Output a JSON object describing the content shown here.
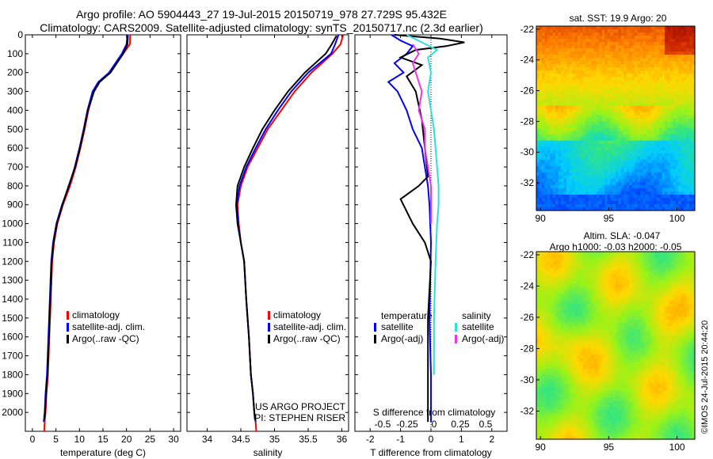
{
  "title": {
    "line1": "Argo profile: AO 5904443_27 19-Jul-2015 20150719_978 27.729S 95.432E",
    "line2": "Climatology: CARS2009. Satellite-adjusted climatology: synTS_20150717.nc (2.3d earlier)"
  },
  "colors": {
    "climatology": "#ff0000",
    "satellite": "#0000ff",
    "argo": "#000000",
    "sal_sat": "#33dddd",
    "sal_argo": "#ee33ee"
  },
  "chart_data": [
    {
      "type": "line",
      "xlabel": "temperature (deg C)",
      "ylabel": "",
      "xlim": [
        -1.5,
        31.5
      ],
      "ylim": [
        2100,
        0
      ],
      "xticks": [
        "0",
        "5",
        "10",
        "15",
        "20",
        "25",
        "30"
      ],
      "yticks": [
        "0",
        "100",
        "200",
        "300",
        "400",
        "500",
        "600",
        "700",
        "800",
        "900",
        "1000",
        "1100",
        "1200",
        "1300",
        "1400",
        "1500",
        "1600",
        "1700",
        "1800",
        "1900",
        "2000"
      ],
      "legend": [
        "climatology",
        "satellite-adj. clim.",
        "Argo(..raw -QC)"
      ],
      "series": [
        {
          "name": "climatology",
          "color": "#ff0000",
          "x": [
            20.8,
            20.7,
            19.3,
            16.5,
            14.2,
            13.0,
            11.9,
            11.1,
            10.2,
            9.2,
            8.0,
            6.5,
            5.3,
            4.6,
            4.2,
            3.9,
            3.6,
            3.3,
            3.0,
            2.8,
            2.6,
            2.5
          ],
          "y": [
            0,
            50,
            100,
            200,
            250,
            300,
            400,
            500,
            600,
            700,
            800,
            900,
            1000,
            1100,
            1200,
            1400,
            1600,
            1800,
            1900,
            2000,
            2050,
            2100
          ]
        },
        {
          "name": "satellite-adj. clim.",
          "color": "#0000ff",
          "x": [
            20.2,
            20.0,
            19.0,
            16.3,
            14.0,
            12.8,
            11.7,
            10.9,
            10.0,
            9.0,
            7.8,
            6.3,
            5.1,
            4.4,
            4.0,
            3.7,
            3.4,
            3.1,
            2.8,
            2.6,
            2.4
          ],
          "y": [
            0,
            50,
            100,
            200,
            250,
            300,
            400,
            500,
            600,
            700,
            800,
            900,
            1000,
            1100,
            1200,
            1400,
            1600,
            1800,
            1900,
            2000,
            2050
          ]
        },
        {
          "name": "Argo(..raw -QC)",
          "color": "#000000",
          "x": [
            20.3,
            20.2,
            19.3,
            16.6,
            14.3,
            13.1,
            11.8,
            11.0,
            10.1,
            9.1,
            7.7,
            6.4,
            5.2,
            4.5,
            4.1,
            3.8,
            3.5,
            3.2,
            2.9,
            2.7,
            2.5
          ],
          "y": [
            5,
            50,
            100,
            200,
            250,
            300,
            400,
            500,
            600,
            700,
            800,
            900,
            1000,
            1100,
            1200,
            1400,
            1600,
            1800,
            1900,
            2000,
            2040
          ]
        }
      ]
    },
    {
      "type": "line",
      "xlabel": "salinity",
      "xlim": [
        33.7,
        36.1
      ],
      "ylim": [
        2100,
        0
      ],
      "xticks": [
        "34",
        "34.5",
        "35",
        "35.5",
        "36"
      ],
      "legend": [
        "climatology",
        "satellite-adj. clim.",
        "Argo(..raw -QC)"
      ],
      "annotation": [
        "US ARGO PROJECT",
        "PI: STEPHEN RISER"
      ],
      "series": [
        {
          "name": "climatology",
          "color": "#ff0000",
          "x": [
            36.02,
            35.98,
            35.86,
            35.55,
            35.3,
            35.1,
            34.9,
            34.75,
            34.6,
            34.5,
            34.45,
            34.47,
            34.5,
            34.55,
            34.58,
            34.62,
            34.65,
            34.68,
            34.7,
            34.72,
            34.73
          ],
          "y": [
            0,
            50,
            100,
            200,
            300,
            400,
            500,
            600,
            700,
            800,
            900,
            1000,
            1100,
            1200,
            1400,
            1600,
            1800,
            1900,
            2000,
            2050,
            2100
          ]
        },
        {
          "name": "satellite-adj. clim.",
          "color": "#0000ff",
          "x": [
            35.95,
            35.9,
            35.84,
            35.5,
            35.25,
            35.05,
            34.87,
            34.72,
            34.58,
            34.48,
            34.44,
            34.46,
            34.5,
            34.55,
            34.58,
            34.62,
            34.65,
            34.68,
            34.7,
            34.72
          ],
          "y": [
            0,
            50,
            100,
            200,
            300,
            400,
            500,
            600,
            700,
            800,
            900,
            1000,
            1100,
            1200,
            1400,
            1600,
            1800,
            1900,
            2000,
            2050
          ]
        },
        {
          "name": "Argo(..raw -QC)",
          "color": "#000000",
          "x": [
            35.92,
            35.85,
            35.76,
            35.45,
            35.2,
            35.0,
            34.82,
            34.68,
            34.55,
            34.45,
            34.43,
            34.45,
            34.5,
            34.55,
            34.58,
            34.62,
            34.65,
            34.68,
            34.7,
            34.71
          ],
          "y": [
            5,
            50,
            100,
            200,
            300,
            400,
            500,
            600,
            700,
            800,
            900,
            1000,
            1100,
            1200,
            1400,
            1600,
            1800,
            1900,
            2000,
            2040
          ]
        }
      ]
    },
    {
      "type": "line",
      "xlabel": "T difference from climatology",
      "x2label": "S difference from climatology",
      "xlim": [
        -2.5,
        2.5
      ],
      "ylim": [
        2100,
        0
      ],
      "xticks": [
        "-2",
        "-1",
        "0",
        "1",
        "2"
      ],
      "x2ticks": [
        "-0.5",
        "-0.25",
        "0",
        "0.25",
        "0.5"
      ],
      "legend_groups": [
        "temperature",
        "salinity"
      ],
      "legend": [
        "satellite",
        "Argo(-adj)",
        "satellite",
        "Argo(-adj)"
      ],
      "series": [
        {
          "name": "temperature satellite",
          "color": "#0000ff",
          "x": [
            -1.3,
            -1.0,
            -0.6,
            -0.8,
            -1.2,
            -0.9,
            -1.4,
            -1.1,
            -0.8,
            -0.6,
            -0.3,
            -0.2,
            -0.1,
            -0.05,
            0.0,
            -0.05,
            0.0,
            0.0
          ],
          "y": [
            0,
            30,
            60,
            100,
            150,
            200,
            250,
            300,
            400,
            500,
            600,
            700,
            800,
            900,
            1100,
            1500,
            1800,
            2050
          ]
        },
        {
          "name": "temperature Argo(-adj)",
          "color": "#000000",
          "x": [
            -1.2,
            0.3,
            1.1,
            0.5,
            -0.5,
            -1.0,
            -0.3,
            -0.8,
            -0.5,
            -0.3,
            -0.2,
            -0.1,
            -0.4,
            -1.0,
            -0.6,
            -0.2,
            0.0,
            -0.1,
            -0.1,
            -0.1
          ],
          "y": [
            0,
            20,
            40,
            60,
            80,
            120,
            160,
            220,
            300,
            450,
            600,
            750,
            800,
            870,
            1000,
            1100,
            1200,
            1500,
            1800,
            2050
          ]
        },
        {
          "name": "salinity satellite",
          "color": "#33dddd",
          "x": [
            -0.8,
            -0.3,
            0.2,
            -0.1,
            0.0,
            -0.1,
            0.0,
            0.1,
            0.15,
            0.2,
            0.25,
            0.25,
            0.2,
            0.15,
            0.1,
            0.1
          ],
          "y": [
            0,
            40,
            80,
            120,
            200,
            300,
            400,
            500,
            600,
            700,
            800,
            900,
            1000,
            1200,
            1500,
            1800
          ]
        },
        {
          "name": "salinity Argo(-adj)",
          "color": "#ee33ee",
          "x": [
            -0.6,
            -0.4,
            -0.6,
            -0.5,
            -0.3,
            -0.4,
            -0.2,
            -0.2,
            -0.1,
            0.0,
            0.0,
            0.0
          ],
          "y": [
            50,
            100,
            150,
            200,
            300,
            400,
            500,
            600,
            700,
            800,
            900,
            1000
          ]
        }
      ]
    },
    {
      "type": "heatmap",
      "title": "sat. SST: 19.9 Argo: 20",
      "xticks": [
        "90",
        "95",
        "100"
      ],
      "yticks": [
        "-22",
        "-24",
        "-26",
        "-28",
        "-30",
        "-32"
      ],
      "xlim": [
        89.7,
        101.3
      ],
      "ylim": [
        -33.8,
        -21.8
      ]
    },
    {
      "type": "heatmap",
      "title": [
        "Altim. SLA: -0.047",
        "Argo h1000: -0.03 h2000: -0.05"
      ],
      "xticks": [
        "90",
        "95",
        "100"
      ],
      "yticks": [
        "-22",
        "-24",
        "-26",
        "-28",
        "-30",
        "-32"
      ],
      "xlim": [
        89.7,
        101.3
      ],
      "ylim": [
        -33.8,
        -21.8
      ],
      "side_label": "©IMOS 24-Jul-2015 20:44:20"
    }
  ]
}
